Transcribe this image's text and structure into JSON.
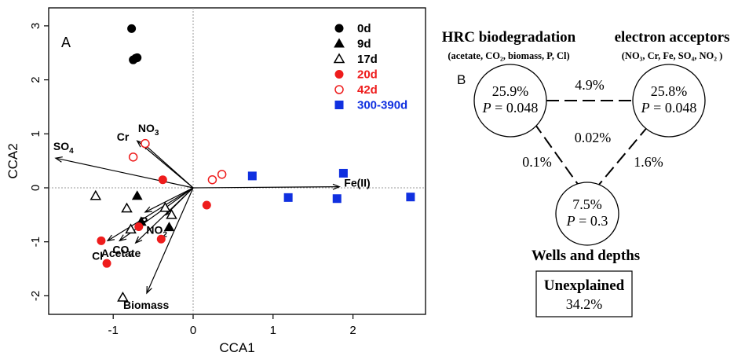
{
  "colors": {
    "black": "#000000",
    "red": "#ee1c1c",
    "blue": "#1030e0",
    "zero_line": "#999999"
  },
  "panel_a": {
    "label": "A",
    "legend_position": "top-right"
  },
  "panel_b": {
    "label": "B",
    "hrc_title": "HRC biodegradation",
    "hrc_subtitle": "(acetate, CO₂, biomass, P, Cl)",
    "ea_title": "electron acceptors",
    "ea_subtitle": "(NO₃, Cr, Fe, SO₄, NO₂ )",
    "circles": [
      {
        "name": "hrc",
        "pct": "25.9%",
        "p_label": "P",
        "p_value": " = 0.048"
      },
      {
        "name": "ea",
        "pct": "25.8%",
        "p_label": "P",
        "p_value": " = 0.048"
      },
      {
        "name": "wells",
        "pct": "7.5%",
        "p_label": "P",
        "p_value": " = 0.3"
      }
    ],
    "shared": {
      "hrc_ea": "4.9%",
      "center": "0.02%",
      "hrc_wells": "0.1%",
      "ea_wells": "1.6%"
    },
    "wells_title": "Wells and depths",
    "unexplained_label": "Unexplained",
    "unexplained_value": "34.2%"
  },
  "chart_data": {
    "type": "scatter",
    "xlabel": "CCA1",
    "ylabel": "CCA2",
    "xlim": [
      -1.82,
      2.85
    ],
    "ylim": [
      -2.38,
      3.28
    ],
    "xticks": [
      -1,
      0,
      1,
      2
    ],
    "yticks": [
      -2,
      -1,
      0,
      1,
      2,
      3
    ],
    "grid": false,
    "zero_lines": true,
    "series": [
      {
        "name": "0d",
        "marker": "circle",
        "filled": true,
        "color": "black",
        "points": [
          [
            -0.77,
            2.95
          ],
          [
            -0.75,
            2.37
          ],
          [
            -0.72,
            2.4
          ],
          [
            -0.7,
            2.41
          ]
        ]
      },
      {
        "name": "9d",
        "marker": "triangle",
        "filled": true,
        "color": "black",
        "points": [
          [
            -0.7,
            -0.15
          ],
          [
            -0.65,
            -0.63
          ],
          [
            -0.3,
            -0.73
          ]
        ]
      },
      {
        "name": "17d",
        "marker": "triangle",
        "filled": false,
        "color": "black",
        "points": [
          [
            -1.22,
            -0.15
          ],
          [
            -0.83,
            -0.38
          ],
          [
            -0.78,
            -0.77
          ],
          [
            -0.35,
            -0.37
          ],
          [
            -0.27,
            -0.5
          ],
          [
            -0.88,
            -2.03
          ]
        ]
      },
      {
        "name": "20d",
        "marker": "circle",
        "filled": true,
        "color": "red",
        "points": [
          [
            -1.15,
            -0.98
          ],
          [
            -1.08,
            -1.4
          ],
          [
            -0.68,
            -0.72
          ],
          [
            -0.4,
            -0.95
          ],
          [
            -0.38,
            0.15
          ],
          [
            0.17,
            -0.32
          ]
        ]
      },
      {
        "name": "42d",
        "marker": "circle",
        "filled": false,
        "color": "red",
        "points": [
          [
            -0.75,
            0.57
          ],
          [
            -0.6,
            0.82
          ],
          [
            0.24,
            0.15
          ],
          [
            0.36,
            0.25
          ]
        ]
      },
      {
        "name": "300-390d",
        "marker": "square",
        "filled": true,
        "color": "blue",
        "points": [
          [
            0.74,
            0.22
          ],
          [
            1.19,
            -0.18
          ],
          [
            1.8,
            -0.2
          ],
          [
            1.88,
            0.27
          ],
          [
            2.72,
            -0.17
          ]
        ]
      }
    ],
    "vectors": [
      {
        "name": "SO4",
        "label": "SO",
        "sub": "4",
        "x": -1.72,
        "y": 0.55
      },
      {
        "name": "Cr",
        "label": "Cr",
        "sub": "",
        "x": -0.7,
        "y": 0.87
      },
      {
        "name": "NO3",
        "label": "NO",
        "sub": "3",
        "x": -0.63,
        "y": 0.83
      },
      {
        "name": "Fe(II)",
        "label": "Fe(II)",
        "sub": "",
        "x": 1.83,
        "y": 0.02
      },
      {
        "name": "Cl",
        "label": "Cl",
        "sub": "",
        "x": -1.07,
        "y": -0.98
      },
      {
        "name": "CO2",
        "label": "CO",
        "sub": "2",
        "x": -0.92,
        "y": -0.98
      },
      {
        "name": "Acetate",
        "label": "Acetate",
        "sub": "",
        "x": -0.72,
        "y": -1.02
      },
      {
        "name": "Biomass",
        "label": "Biomass",
        "sub": "",
        "x": -0.58,
        "y": -1.95
      },
      {
        "name": "P",
        "label": "P",
        "sub": "",
        "x": -0.6,
        "y": -0.45
      },
      {
        "name": "NO2",
        "label": "NO",
        "sub": "2",
        "x": -0.34,
        "y": -0.5
      }
    ]
  }
}
